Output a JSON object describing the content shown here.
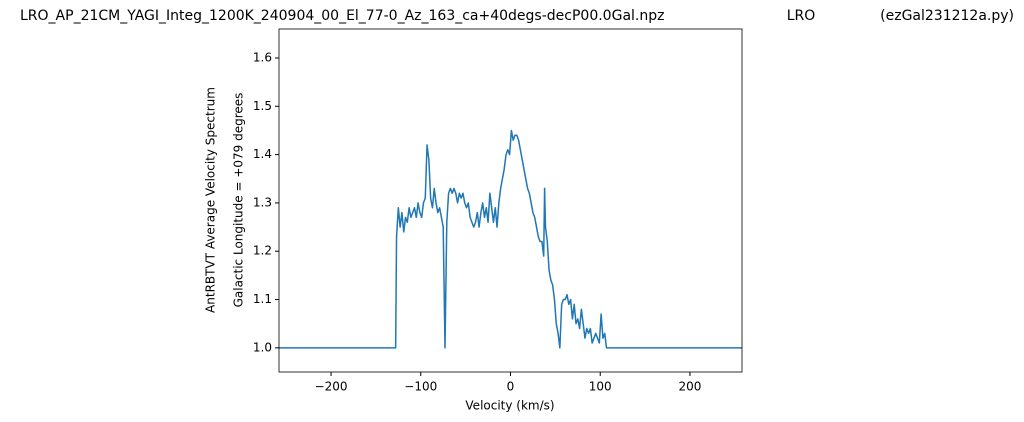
{
  "chart_data": {
    "type": "line",
    "title": "LRO_AP_21CM_YAGI_Integ_1200K_240904_00_El_77-0_Az_163_ca+40degs-decP00.0Gal.npz",
    "site": "LRO",
    "program": "(ezGal231212a.py)",
    "xlabel": "Velocity (km/s)",
    "ylabel": "AntRBTVT Average Velocity Spectrum",
    "ylabel2": "Galactic Longitude = +079 degrees",
    "xlim": [
      -258,
      258
    ],
    "ylim": [
      0.95,
      1.66
    ],
    "xticks": [
      {
        "value": -200,
        "label": "−200"
      },
      {
        "value": -100,
        "label": "−100"
      },
      0,
      100,
      200
    ],
    "yticks": [
      {
        "value": 1,
        "label": "1.0"
      },
      1.1,
      1.2,
      1.3,
      1.4,
      1.5,
      1.6
    ],
    "grid": false,
    "series": [
      {
        "color": "#1f77b4",
        "x": [
          -258,
          -128,
          -127,
          -125,
          -123,
          -121,
          -119,
          -117,
          -115,
          -113,
          -111,
          -109,
          -107,
          -105,
          -103,
          -101,
          -99,
          -97,
          -95,
          -93,
          -91,
          -89,
          -87,
          -85,
          -83,
          -81,
          -79,
          -77,
          -75,
          -73,
          -71,
          -69,
          -67,
          -65,
          -63,
          -61,
          -59,
          -57,
          -55,
          -53,
          -51,
          -49,
          -47,
          -45,
          -43,
          -41,
          -39,
          -37,
          -35,
          -33,
          -31,
          -29,
          -27,
          -25,
          -23,
          -21,
          -19,
          -17,
          -15,
          -13,
          -11,
          -9,
          -7,
          -5,
          -3,
          -1,
          1,
          3,
          5,
          7,
          9,
          11,
          13,
          15,
          17,
          19,
          21,
          23,
          25,
          27,
          29,
          31,
          33,
          35,
          37,
          38,
          39,
          41,
          43,
          45,
          47,
          49,
          51,
          53,
          55,
          57,
          59,
          61,
          63,
          65,
          67,
          69,
          71,
          73,
          75,
          77,
          79,
          81,
          83,
          85,
          87,
          89,
          91,
          93,
          95,
          97,
          99,
          101,
          103,
          105,
          107,
          109,
          111,
          113,
          115,
          258
        ],
        "values": [
          1.0,
          1.0,
          1.23,
          1.29,
          1.25,
          1.28,
          1.24,
          1.27,
          1.26,
          1.29,
          1.27,
          1.28,
          1.29,
          1.27,
          1.3,
          1.28,
          1.27,
          1.3,
          1.31,
          1.42,
          1.39,
          1.31,
          1.29,
          1.33,
          1.3,
          1.28,
          1.29,
          1.27,
          1.25,
          1.0,
          1.26,
          1.32,
          1.33,
          1.32,
          1.33,
          1.32,
          1.3,
          1.32,
          1.31,
          1.32,
          1.3,
          1.29,
          1.3,
          1.27,
          1.26,
          1.25,
          1.26,
          1.28,
          1.25,
          1.28,
          1.3,
          1.27,
          1.29,
          1.26,
          1.32,
          1.29,
          1.26,
          1.29,
          1.25,
          1.3,
          1.33,
          1.35,
          1.37,
          1.4,
          1.41,
          1.4,
          1.45,
          1.43,
          1.44,
          1.44,
          1.43,
          1.41,
          1.39,
          1.37,
          1.35,
          1.33,
          1.32,
          1.3,
          1.28,
          1.27,
          1.25,
          1.23,
          1.22,
          1.22,
          1.19,
          1.33,
          1.25,
          1.22,
          1.16,
          1.14,
          1.13,
          1.1,
          1.05,
          1.03,
          1.0,
          1.09,
          1.1,
          1.1,
          1.11,
          1.09,
          1.1,
          1.06,
          1.09,
          1.05,
          1.06,
          1.04,
          1.08,
          1.05,
          1.02,
          1.04,
          1.03,
          1.04,
          1.01,
          1.02,
          1.03,
          1.02,
          1.01,
          1.07,
          1.02,
          1.03,
          1.0,
          1.0,
          1.0,
          1.0,
          1.0,
          1.0
        ]
      }
    ]
  }
}
